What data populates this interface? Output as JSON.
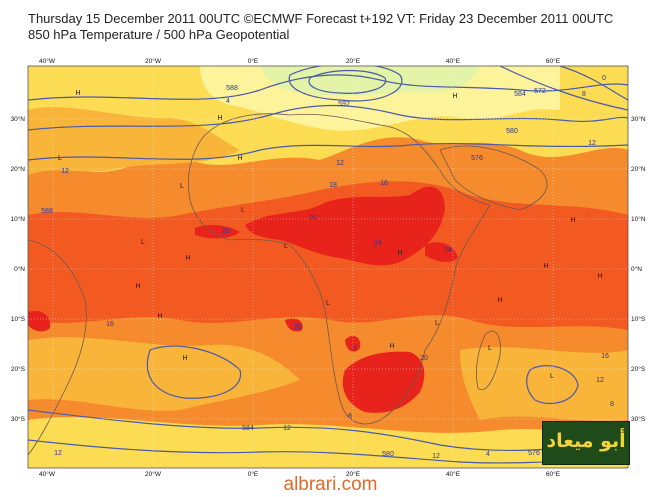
{
  "header": {
    "line1": "Thursday 15 December 2011 00UTC ©ECMWF Forecast t+192 VT: Friday 23 December 2011 00UTC",
    "line2": "850 hPa Temperature / 500 hPa Geopotential"
  },
  "map": {
    "lon_labels": [
      "40°W",
      "20°W",
      "0°E",
      "20°E",
      "40°E",
      "60°E"
    ],
    "lat_labels": [
      "30°N",
      "20°N",
      "10°N",
      "0°N",
      "10°S",
      "20°S",
      "30°S"
    ],
    "colors": {
      "deep_red": "#e8231b",
      "red_orange": "#f25a22",
      "orange": "#f58b2c",
      "amber": "#f9b43a",
      "yellow": "#fbdc52",
      "pale_yellow": "#fdf39a",
      "pale_green": "#e3f3a8",
      "contour": "#4b5aa8"
    },
    "contour_labels": [
      "24",
      "20",
      "20",
      "24",
      "20",
      "20",
      "18",
      "16",
      "16",
      "12",
      "12",
      "12",
      "12",
      "12",
      "12",
      "8",
      "8",
      "8",
      "4",
      "4",
      "0",
      "16",
      "12",
      "8",
      "592",
      "588",
      "584",
      "580",
      "576",
      "572",
      "576",
      "580",
      "584",
      "588"
    ],
    "pressure_centers": [
      "H",
      "H",
      "H",
      "H",
      "H",
      "H",
      "H",
      "H",
      "H",
      "H",
      "H",
      "H",
      "H",
      "H",
      "L",
      "L",
      "L",
      "L",
      "L",
      "L",
      "L",
      "L",
      "L"
    ]
  },
  "logo": {
    "text": "أبو ميعاد"
  },
  "footer": {
    "site": "albrari.com"
  }
}
